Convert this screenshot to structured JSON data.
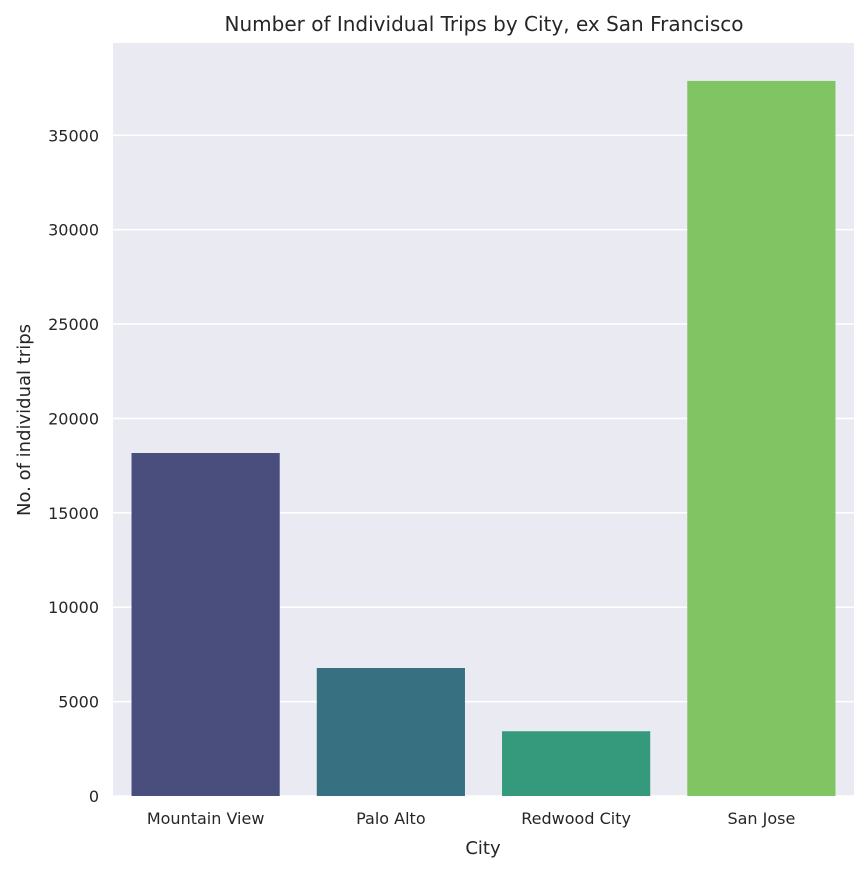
{
  "chart_data": {
    "type": "bar",
    "title": "Number of Individual Trips by City, ex San Francisco",
    "xlabel": "City",
    "ylabel": "No. of individual trips",
    "categories": [
      "Mountain View",
      "Palo Alto",
      "Redwood City",
      "San Jose"
    ],
    "values": [
      18170,
      6780,
      3430,
      37880
    ],
    "colors": [
      "#4a4e7d",
      "#377181",
      "#35997b",
      "#80c463"
    ],
    "ylim": [
      0,
      40000
    ],
    "yticks": [
      0,
      5000,
      10000,
      15000,
      20000,
      25000,
      30000,
      35000
    ],
    "ytick_labels": [
      "0",
      "5000",
      "10000",
      "15000",
      "20000",
      "25000",
      "30000",
      "35000"
    ],
    "grid": true,
    "legend": "none",
    "background": "#eaeaf2"
  }
}
